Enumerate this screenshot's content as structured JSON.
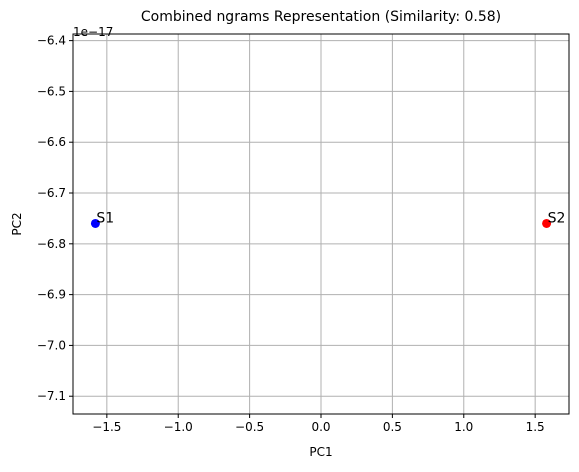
{
  "chart_data": {
    "type": "scatter",
    "title": "Combined ngrams Representation (Similarity: 0.58)",
    "xlabel": "PC1",
    "ylabel": "PC2",
    "offset_label": "1e−17",
    "xlim": [
      -1.737,
      1.737
    ],
    "ylim": [
      -7.135,
      -6.387
    ],
    "y_scale_exponent": -17,
    "grid": true,
    "xticks": [
      {
        "value": -1.5,
        "label": "−1.5"
      },
      {
        "value": -1.0,
        "label": "−1.0"
      },
      {
        "value": -0.5,
        "label": "−0.5"
      },
      {
        "value": 0.0,
        "label": "0.0"
      },
      {
        "value": 0.5,
        "label": "0.5"
      },
      {
        "value": 1.0,
        "label": "1.0"
      },
      {
        "value": 1.5,
        "label": "1.5"
      }
    ],
    "yticks": [
      {
        "value": -6.4,
        "label": "−6.4"
      },
      {
        "value": -6.5,
        "label": "−6.5"
      },
      {
        "value": -6.6,
        "label": "−6.6"
      },
      {
        "value": -6.7,
        "label": "−6.7"
      },
      {
        "value": -6.8,
        "label": "−6.8"
      },
      {
        "value": -6.9,
        "label": "−6.9"
      },
      {
        "value": -7.0,
        "label": "−7.0"
      },
      {
        "value": -7.1,
        "label": "−7.1"
      }
    ],
    "points": [
      {
        "label": "S1",
        "x": -1.58,
        "y": -6.76,
        "color": "#0000ff"
      },
      {
        "label": "S2",
        "x": 1.58,
        "y": -6.76,
        "color": "#ff0000"
      }
    ],
    "colors": {
      "grid": "#b0b0b0",
      "axis": "#000000"
    }
  }
}
